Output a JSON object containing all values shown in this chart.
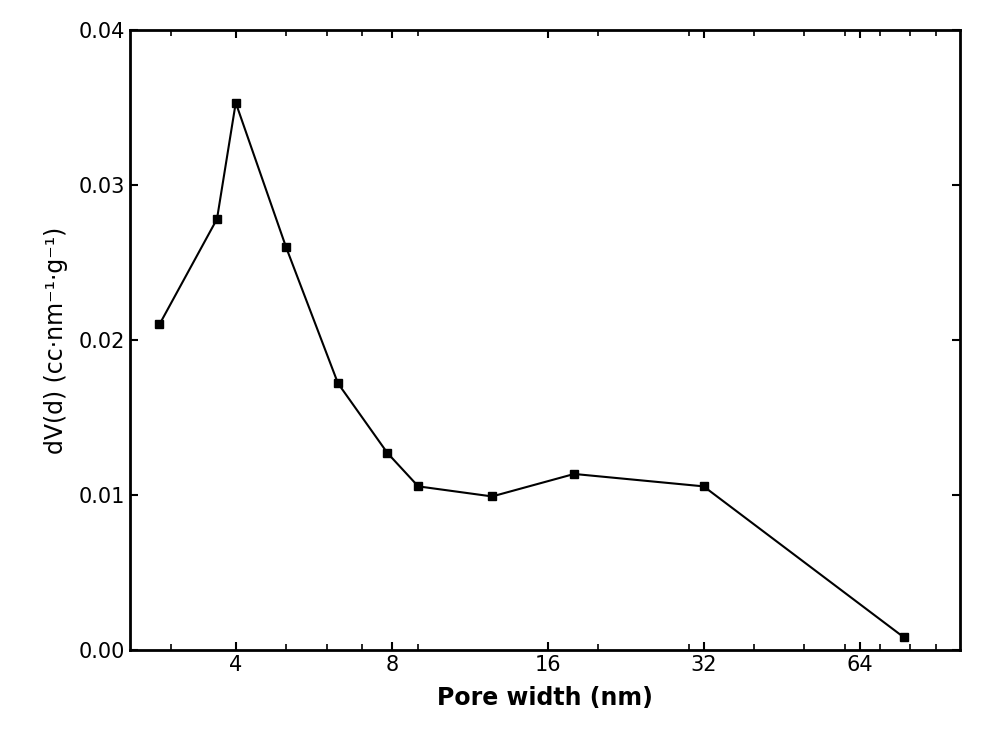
{
  "x_data": [
    2.85,
    3.68,
    4.0,
    5.0,
    6.3,
    7.85,
    9.0,
    12.5,
    18.0,
    32.0,
    78.0
  ],
  "y_data": [
    0.021,
    0.0278,
    0.0353,
    0.026,
    0.0172,
    0.0127,
    0.01055,
    0.0099,
    0.01135,
    0.01055,
    0.0008
  ],
  "xlabel": "Pore width (nm)",
  "ylabel": "dV(d) (cc·nm⁻¹·g⁻¹)",
  "xlim": [
    2.5,
    100
  ],
  "ylim": [
    0.0,
    0.04
  ],
  "xticks": [
    4,
    8,
    16,
    32,
    64
  ],
  "yticks": [
    0.0,
    0.01,
    0.02,
    0.03,
    0.04
  ],
  "line_color": "#000000",
  "marker": "s",
  "marker_size": 6,
  "line_width": 1.5,
  "background_color": "#ffffff",
  "font_size_label": 17,
  "font_size_tick": 15,
  "spine_linewidth": 2.0
}
